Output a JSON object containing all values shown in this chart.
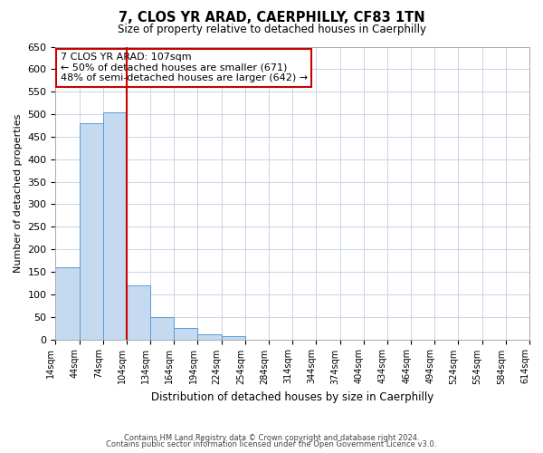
{
  "title": "7, CLOS YR ARAD, CAERPHILLY, CF83 1TN",
  "subtitle": "Size of property relative to detached houses in Caerphilly",
  "xlabel": "Distribution of detached houses by size in Caerphilly",
  "ylabel": "Number of detached properties",
  "bar_values": [
    160,
    480,
    505,
    120,
    50,
    25,
    12,
    7,
    0,
    0,
    0,
    0,
    0,
    0,
    0,
    0,
    0,
    0,
    0,
    0
  ],
  "bin_edges": [
    14,
    44,
    74,
    104,
    134,
    164,
    194,
    224,
    254,
    284,
    314,
    344,
    374,
    404,
    434,
    464,
    494,
    524,
    554,
    584,
    614
  ],
  "bin_labels": [
    "14sqm",
    "44sqm",
    "74sqm",
    "104sqm",
    "134sqm",
    "164sqm",
    "194sqm",
    "224sqm",
    "254sqm",
    "284sqm",
    "314sqm",
    "344sqm",
    "374sqm",
    "404sqm",
    "434sqm",
    "464sqm",
    "494sqm",
    "524sqm",
    "554sqm",
    "584sqm",
    "614sqm"
  ],
  "bar_color": "#c5d9f1",
  "bar_edge_color": "#5b9bd5",
  "vline_color": "#cc0000",
  "vline_pos": 3,
  "ylim": [
    0,
    650
  ],
  "yticks": [
    0,
    50,
    100,
    150,
    200,
    250,
    300,
    350,
    400,
    450,
    500,
    550,
    600,
    650
  ],
  "annotation_line1": "7 CLOS YR ARAD: 107sqm",
  "annotation_line2": "← 50% of detached houses are smaller (671)",
  "annotation_line3": "48% of semi-detached houses are larger (642) →",
  "annotation_box_color": "#ffffff",
  "annotation_box_edge": "#cc0000",
  "footer_line1": "Contains HM Land Registry data © Crown copyright and database right 2024.",
  "footer_line2": "Contains public sector information licensed under the Open Government Licence v3.0.",
  "bg_color": "#ffffff",
  "grid_color": "#c8d4e8"
}
